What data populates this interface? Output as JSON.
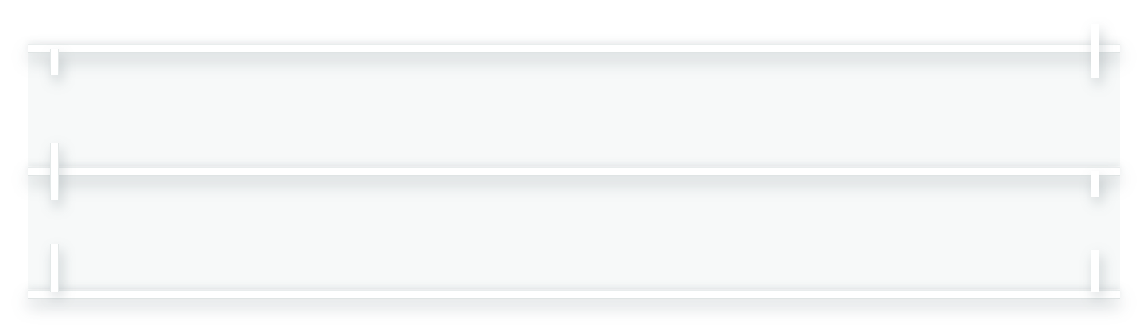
{
  "colors": {
    "background": "#ffffff",
    "shadow": "#e6eaeb"
  }
}
